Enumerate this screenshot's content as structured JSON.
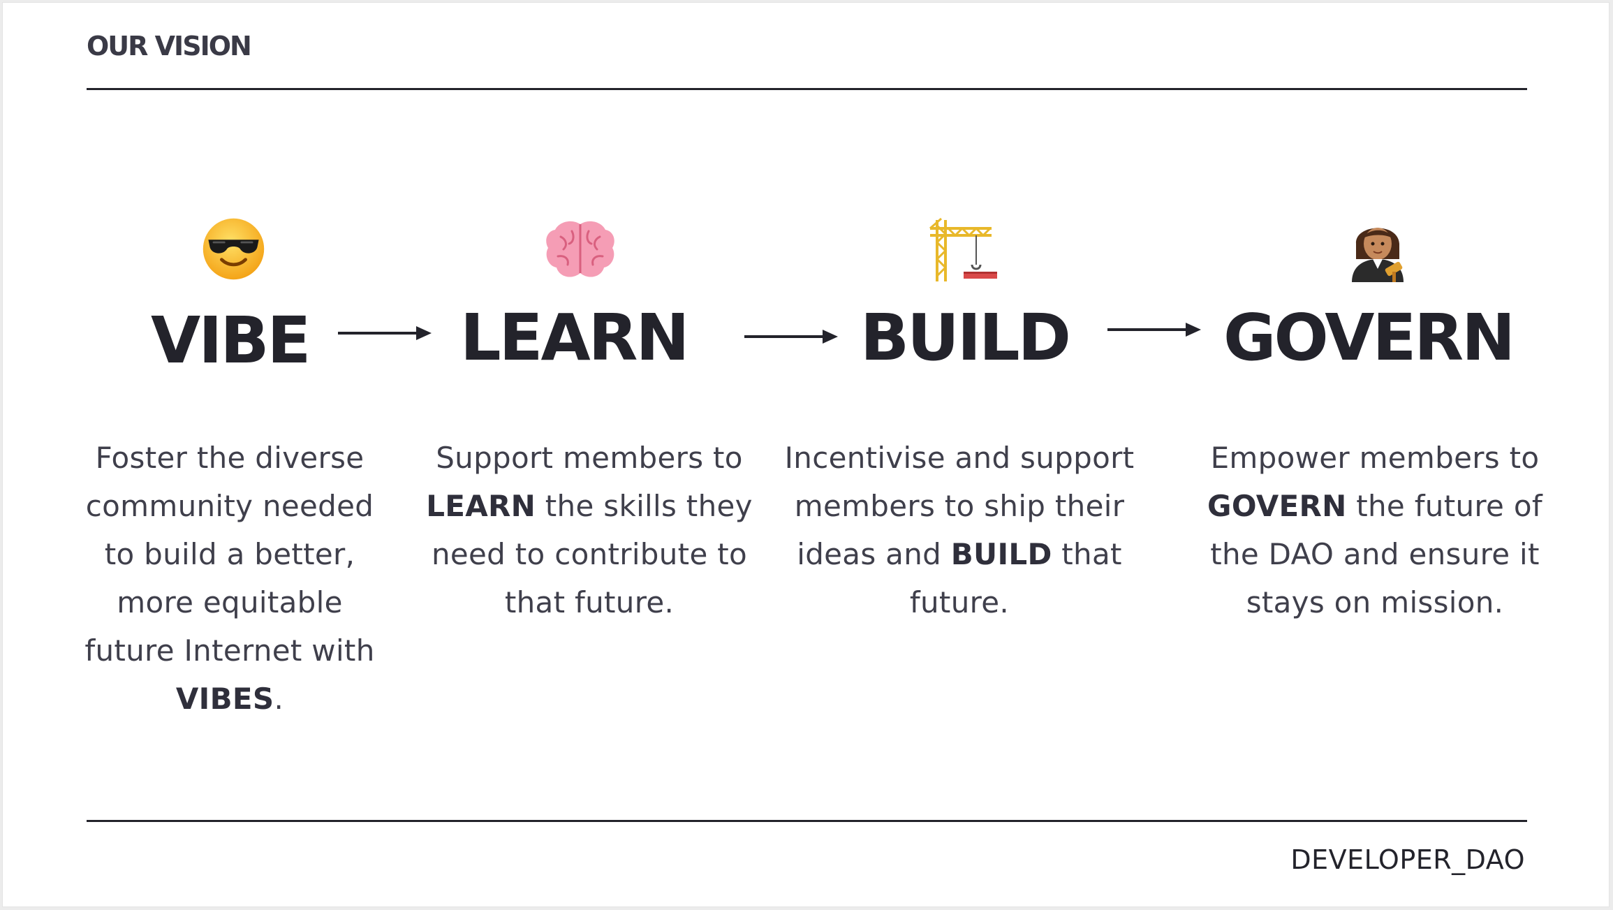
{
  "title": "OUR VISION",
  "footer": {
    "brand": "DEVELOPER_DAO"
  },
  "steps": [
    {
      "label": "VIBE",
      "icon": "smiling-face-with-sunglasses-icon",
      "desc": {
        "pre": "Foster the diverse community needed to build a better, more equitable future Internet with ",
        "strong": "VIBES",
        "post": "."
      }
    },
    {
      "label": "LEARN",
      "icon": "brain-icon",
      "desc": {
        "pre": "Support members to ",
        "strong": "LEARN",
        "post": " the skills they need to contribute to that future."
      }
    },
    {
      "label": "BUILD",
      "icon": "construction-crane-icon",
      "desc": {
        "pre": "Incentivise and support members to ship their ideas and ",
        "strong": "BUILD",
        "post": " that future."
      }
    },
    {
      "label": "GOVERN",
      "icon": "judge-with-gavel-icon",
      "desc": {
        "pre": "Empower members to ",
        "strong": "GOVERN",
        "post": " the future of the DAO and ensure it stays on mission."
      }
    }
  ],
  "colors": {
    "text": "#23232b",
    "body_text": "#3f3f4b",
    "background": "#ffffff"
  }
}
